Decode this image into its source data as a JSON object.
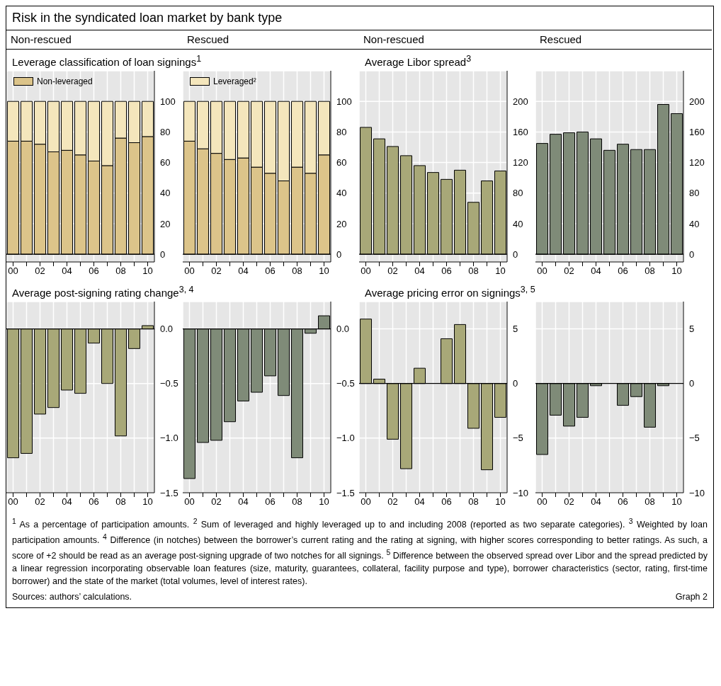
{
  "chart_data": [
    {
      "type": "bar",
      "subtitle": "Non-rescued",
      "title": "Leverage classification of loan signings$^{1}$",
      "annotations": [
        "Risk in the syndicated loan market by bank type"
      ],
      "categories": [
        "00",
        null,
        "02",
        null,
        "04",
        null,
        "06",
        null,
        "08",
        null,
        "10"
      ],
      "stacked": true,
      "legend": "top left",
      "grid": true,
      "ylim": [
        -5,
        120
      ],
      "yticks": [
        0,
        20,
        40,
        60,
        80,
        100
      ],
      "ref_lines": [
        {
          "axis": "y",
          "value": 0,
          "color": "#000000"
        }
      ],
      "series": [
        {
          "name": "Non-leveraged",
          "color": "#dcc48a",
          "values": [
            74,
            74,
            72,
            67,
            68,
            65,
            61,
            58,
            76,
            73,
            77
          ]
        },
        {
          "color": "#f4e6bc",
          "values": [
            26,
            26,
            28,
            33,
            32,
            35,
            39,
            42,
            24,
            27,
            23
          ]
        }
      ]
    },
    {
      "type": "bar",
      "subtitle": "Rescued",
      "categories": [
        "00",
        null,
        "02",
        null,
        "04",
        null,
        "06",
        null,
        "08",
        null,
        "10"
      ],
      "stacked": true,
      "legend": "top left",
      "grid": true,
      "ylim": [
        -5,
        120
      ],
      "yticks": [
        0,
        20,
        40,
        60,
        80,
        100
      ],
      "ref_lines": [
        {
          "axis": "y",
          "value": 0,
          "color": "#000000"
        }
      ],
      "series": [
        {
          "color": "#dcc48a",
          "values": [
            74,
            69,
            66,
            62,
            63,
            57,
            53,
            48,
            57,
            53,
            65
          ]
        },
        {
          "name": "Leveraged²",
          "color": "#f4e6bc",
          "values": [
            26,
            31,
            34,
            38,
            37,
            43,
            47,
            52,
            43,
            47,
            35
          ]
        }
      ]
    },
    {
      "type": "bar",
      "subtitle": "Non-rescued",
      "title": "Average Libor spread$^{3}$",
      "categories": [
        "00",
        null,
        "02",
        null,
        "04",
        null,
        "06",
        null,
        "08",
        null,
        "10"
      ],
      "grid": true,
      "ylim": [
        -10,
        240
      ],
      "yticks": [
        0,
        40,
        80,
        120,
        160,
        200
      ],
      "ref_lines": [
        {
          "axis": "y",
          "value": 0,
          "color": "#000000"
        }
      ],
      "color": "#a8a878",
      "values": [
        166,
        151,
        141,
        129,
        116,
        107,
        98,
        110,
        68,
        96,
        109
      ]
    },
    {
      "type": "bar",
      "subtitle": "Rescued",
      "categories": [
        "00",
        null,
        "02",
        null,
        "04",
        null,
        "06",
        null,
        "08",
        null,
        "10"
      ],
      "grid": true,
      "ylim": [
        -10,
        240
      ],
      "yticks": [
        0,
        40,
        80,
        120,
        160,
        200
      ],
      "ref_lines": [
        {
          "axis": "y",
          "value": 0,
          "color": "#000000"
        }
      ],
      "color": "#7f8b78",
      "values": [
        145,
        157,
        159,
        160,
        151,
        136,
        144,
        137,
        137,
        196,
        184
      ]
    },
    {
      "type": "bar",
      "title": "Average post-signing rating change$^{3, 4}$",
      "categories": [
        "00",
        null,
        "02",
        null,
        "04",
        null,
        "06",
        null,
        "08",
        null,
        "10"
      ],
      "grid": true,
      "ylim": [
        -1.5,
        0.25
      ],
      "yticks": [
        {
          "value": 0,
          "label": "0.0"
        },
        {
          "value": -0.5,
          "label": "−0.5"
        },
        {
          "value": -1,
          "label": "−1.0"
        },
        {
          "value": -1.5,
          "label": "−1.5"
        }
      ],
      "ref_lines": [
        {
          "axis": "y",
          "value": 0,
          "color": "#000000"
        }
      ],
      "color": "#a8a878",
      "values": [
        -1.18,
        -1.14,
        -0.78,
        -0.72,
        -0.56,
        -0.59,
        -0.13,
        -0.5,
        -0.98,
        -0.18,
        0.03
      ]
    },
    {
      "type": "bar",
      "categories": [
        "00",
        null,
        "02",
        null,
        "04",
        null,
        "06",
        null,
        "08",
        null,
        "10"
      ],
      "grid": true,
      "ylim": [
        -1.5,
        0.25
      ],
      "yticks": [
        {
          "value": 0,
          "label": "0.0"
        },
        {
          "value": -0.5,
          "label": "−0.5"
        },
        {
          "value": -1,
          "label": "−1.0"
        },
        {
          "value": -1.5,
          "label": "−1.5"
        }
      ],
      "ref_lines": [
        {
          "axis": "y",
          "value": 0,
          "color": "#000000"
        }
      ],
      "color": "#7f8b78",
      "values": [
        -1.37,
        -1.04,
        -1.02,
        -0.85,
        -0.66,
        -0.58,
        -0.43,
        -0.61,
        -1.18,
        -0.04,
        0.12
      ]
    },
    {
      "type": "bar",
      "title": "Average pricing error on signings$^{3, 5}$",
      "categories": [
        "00",
        null,
        "02",
        null,
        "04",
        null,
        "06",
        null,
        "08",
        null,
        "10"
      ],
      "grid": true,
      "ylim": [
        -10,
        7.5
      ],
      "yticks": [
        5,
        0,
        {
          "value": -5,
          "label": "−5"
        },
        {
          "value": -10,
          "label": "−10"
        }
      ],
      "ref_lines": [
        {
          "axis": "y",
          "value": 0,
          "color": "#000000"
        }
      ],
      "color": "#a8a878",
      "values": [
        5.9,
        0.4,
        -5.1,
        -7.8,
        1.4,
        null,
        4.1,
        5.4,
        -4.1,
        -7.9,
        -3.1
      ]
    },
    {
      "type": "bar",
      "categories": [
        "00",
        null,
        "02",
        null,
        "04",
        null,
        "06",
        null,
        "08",
        null,
        "10"
      ],
      "grid": true,
      "ylim": [
        -10,
        7.5
      ],
      "yticks": [
        5,
        0,
        {
          "value": -5,
          "label": "−5"
        },
        {
          "value": -10,
          "label": "−10"
        }
      ],
      "ref_lines": [
        {
          "axis": "y",
          "value": 0,
          "color": "#000000"
        }
      ],
      "color": "#7f8b78",
      "values": [
        -6.5,
        -2.9,
        -3.9,
        -3.1,
        -0.2,
        null,
        -2,
        -1.2,
        -4,
        -0.2,
        null
      ],
      "annotations": [
        "$^{1}$ As a percentage of participation amounts.",
        "$^{2}$ Sum of leveraged and highly leveraged up to and including 2008 (reported as two separate categories).",
        "$^{3}$ Weighted by loan participation amounts.",
        "$^{4}$ Difference (in notches) between the borrower’s current rating and the rating at signing, with higher scores corresponding to better ratings. As such, a score of +2 should be read as an average post-signing upgrade of two notches for all signings.",
        "$^{5}$ Difference between the observed spread over Libor and the spread predicted by a linear regression incorporating observable loan features (size, maturity, guarantees, collateral, facility purpose and type), borrower characteristics (sector, rating, first-time borrower) and the state of the market (total volumes, level of interest rates).",
        "Sources: authors’ calculations.",
        "Graph 2"
      ]
    }
  ]
}
